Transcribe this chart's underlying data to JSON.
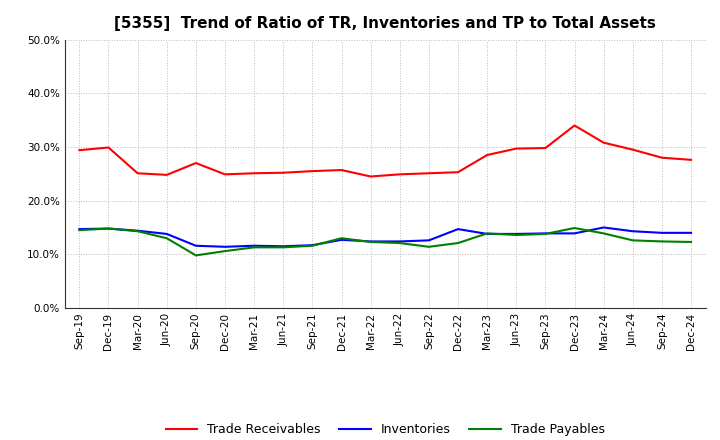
{
  "title": "[5355]  Trend of Ratio of TR, Inventories and TP to Total Assets",
  "labels": [
    "Sep-19",
    "Dec-19",
    "Mar-20",
    "Jun-20",
    "Sep-20",
    "Dec-20",
    "Mar-21",
    "Jun-21",
    "Sep-21",
    "Dec-21",
    "Mar-22",
    "Jun-22",
    "Sep-22",
    "Dec-22",
    "Mar-23",
    "Jun-23",
    "Sep-23",
    "Dec-23",
    "Mar-24",
    "Jun-24",
    "Sep-24",
    "Dec-24"
  ],
  "trade_receivables": [
    0.294,
    0.299,
    0.251,
    0.248,
    0.27,
    0.249,
    0.251,
    0.252,
    0.255,
    0.257,
    0.245,
    0.249,
    0.251,
    0.253,
    0.285,
    0.297,
    0.298,
    0.34,
    0.308,
    0.295,
    0.28,
    0.276
  ],
  "inventories": [
    0.147,
    0.148,
    0.144,
    0.138,
    0.116,
    0.114,
    0.116,
    0.115,
    0.117,
    0.127,
    0.124,
    0.124,
    0.126,
    0.147,
    0.138,
    0.138,
    0.139,
    0.139,
    0.15,
    0.143,
    0.14,
    0.14
  ],
  "trade_payables": [
    0.145,
    0.148,
    0.143,
    0.13,
    0.098,
    0.106,
    0.113,
    0.113,
    0.116,
    0.13,
    0.123,
    0.121,
    0.114,
    0.121,
    0.139,
    0.136,
    0.138,
    0.149,
    0.139,
    0.126,
    0.124,
    0.123
  ],
  "tr_color": "#FF0000",
  "inv_color": "#0000FF",
  "tp_color": "#008000",
  "ylim": [
    0.0,
    0.5
  ],
  "yticks": [
    0.0,
    0.1,
    0.2,
    0.3,
    0.4,
    0.5
  ],
  "background_color": "#FFFFFF",
  "grid_color": "#BBBBBB",
  "legend_labels": [
    "Trade Receivables",
    "Inventories",
    "Trade Payables"
  ],
  "title_fontsize": 11,
  "tick_fontsize": 7.5,
  "legend_fontsize": 9,
  "linewidth": 1.5
}
